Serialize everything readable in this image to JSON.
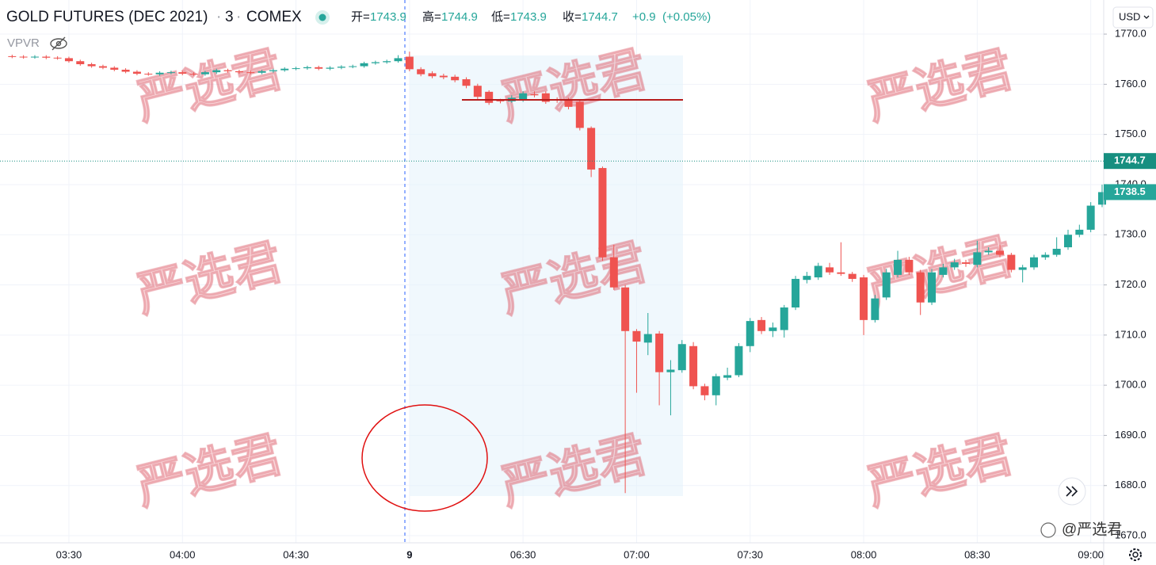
{
  "chart_data": {
    "type": "candlestick",
    "title": "GOLD FUTURES (DEC 2021)",
    "separator": "·",
    "interval": "3",
    "exchange": "COMEX",
    "ohlc": [
      {
        "label": "开=",
        "value": 1743.9
      },
      {
        "label": "高=",
        "value": 1744.9
      },
      {
        "label": "低=",
        "value": 1743.9
      },
      {
        "label": "收=",
        "value": 1744.7
      }
    ],
    "change": "+0.9",
    "change_pct": "(+0.05%)",
    "indicator": "VPVR",
    "currency": "USD",
    "watermark": "严选君",
    "watermark_footer": "@严选君",
    "up_color": "#26a69a",
    "down_color": "#ef5350",
    "categories": [
      null,
      null,
      null,
      null,
      null,
      "03:30",
      null,
      null,
      null,
      null,
      null,
      null,
      null,
      null,
      null,
      "04:00",
      null,
      null,
      null,
      null,
      null,
      null,
      null,
      null,
      null,
      "04:30",
      null,
      null,
      null,
      null,
      null,
      null,
      null,
      null,
      null,
      "9",
      null,
      null,
      null,
      null,
      null,
      null,
      null,
      null,
      null,
      "06:30",
      null,
      null,
      null,
      null,
      null,
      null,
      null,
      null,
      null,
      "07:00",
      null,
      null,
      null,
      null,
      null,
      null,
      null,
      null,
      null,
      "07:30",
      null,
      null,
      null,
      null,
      null,
      null,
      null,
      null,
      null,
      "08:00",
      null,
      null,
      null,
      null,
      null,
      null,
      null,
      null,
      null,
      "08:30",
      null,
      null,
      null,
      null,
      null,
      null,
      null,
      null,
      null,
      "09:00",
      null
    ],
    "open": [
      1765.6,
      1765.5,
      1765.4,
      1765.5,
      1765.3,
      1765.2,
      1764.6,
      1764.0,
      1763.6,
      1763.3,
      1762.9,
      1762.5,
      1762.1,
      1762.0,
      1762.3,
      1762.4,
      1762.1,
      1762.0,
      1762.4,
      1762.8,
      1762.6,
      1762.4,
      1762.3,
      1762.6,
      1762.8,
      1763.1,
      1763.2,
      1763.4,
      1763.1,
      1763.3,
      1763.5,
      1763.6,
      1764.2,
      1764.4,
      1764.6,
      1765.5,
      1763.0,
      1762.2,
      1761.7,
      1761.5,
      1761.0,
      1759.7,
      1758.5,
      1756.8,
      1756.6,
      1756.8,
      1758.0,
      1758.2,
      1757.0,
      1757.0,
      1756.5,
      1751.3,
      1743.3,
      1725.5,
      1719.5,
      1710.8,
      1708.5,
      1710.3,
      1702.6,
      1703.0,
      1707.8,
      1699.8,
      1698.0,
      1701.5,
      1702.0,
      1707.8,
      1713.0,
      1710.8,
      1711.0,
      1715.5,
      1721.0,
      1721.5,
      1723.5,
      1722.5,
      1722.2,
      1721.5,
      1713.0,
      1717.5,
      1722.0,
      1725.0,
      1722.5,
      1716.5,
      1722.0,
      1723.5,
      1724.5,
      1724.0,
      1726.5,
      1726.8,
      1726.0,
      1723.0,
      1723.5,
      1725.5,
      1726.0,
      1727.5,
      1730.0,
      1731.0,
      1736.0
    ],
    "high": [
      1765.9,
      1765.8,
      1765.8,
      1765.8,
      1765.6,
      1765.5,
      1764.9,
      1764.3,
      1763.9,
      1763.6,
      1763.2,
      1762.8,
      1762.4,
      1762.6,
      1762.7,
      1762.7,
      1762.4,
      1762.7,
      1763.1,
      1763.1,
      1762.9,
      1762.7,
      1762.9,
      1763.1,
      1763.4,
      1763.5,
      1763.7,
      1763.7,
      1763.6,
      1763.8,
      1763.9,
      1764.5,
      1764.7,
      1764.9,
      1765.8,
      1766.5,
      1763.4,
      1762.6,
      1762.1,
      1761.9,
      1761.4,
      1760.1,
      1758.8,
      1757.1,
      1757.8,
      1758.6,
      1758.6,
      1758.6,
      1757.4,
      1757.3,
      1756.8,
      1751.6,
      1743.6,
      1728.0,
      1720.0,
      1711.2,
      1714.4,
      1710.8,
      1705.0,
      1709.0,
      1708.6,
      1700.3,
      1702.3,
      1703.5,
      1708.4,
      1713.4,
      1713.6,
      1712.5,
      1716.0,
      1721.8,
      1722.6,
      1724.4,
      1724.4,
      1728.5,
      1722.6,
      1722.0,
      1718.0,
      1723.2,
      1726.8,
      1725.6,
      1723.0,
      1723.2,
      1724.2,
      1725.2,
      1725.0,
      1728.8,
      1727.5,
      1728.0,
      1726.4,
      1724.0,
      1726.0,
      1726.5,
      1729.5,
      1731.0,
      1732.0,
      1736.5,
      1740.0
    ],
    "low": [
      1765.2,
      1765.1,
      1765.1,
      1765.0,
      1764.9,
      1764.3,
      1763.7,
      1763.3,
      1763.0,
      1762.6,
      1762.2,
      1761.8,
      1761.7,
      1761.7,
      1762.0,
      1761.8,
      1761.7,
      1761.7,
      1762.1,
      1762.3,
      1762.1,
      1762.0,
      1762.0,
      1762.3,
      1762.5,
      1762.8,
      1762.9,
      1762.8,
      1762.8,
      1763.0,
      1763.2,
      1763.3,
      1763.9,
      1764.1,
      1764.3,
      1762.6,
      1761.6,
      1761.2,
      1761.0,
      1760.4,
      1759.2,
      1756.9,
      1755.9,
      1756.2,
      1756.3,
      1756.5,
      1757.4,
      1756.1,
      1756.3,
      1755.0,
      1750.8,
      1741.5,
      1724.8,
      1719.0,
      1678.5,
      1698.5,
      1706.0,
      1696.0,
      1694.0,
      1702.5,
      1699.2,
      1697.0,
      1696.0,
      1701.0,
      1701.6,
      1706.6,
      1710.2,
      1709.6,
      1709.5,
      1715.0,
      1720.3,
      1721.0,
      1722.0,
      1721.8,
      1720.6,
      1710.0,
      1712.5,
      1717.0,
      1721.5,
      1722.0,
      1714.0,
      1716.0,
      1721.5,
      1723.0,
      1723.6,
      1723.5,
      1726.0,
      1725.5,
      1722.5,
      1720.5,
      1723.0,
      1725.0,
      1725.6,
      1727.0,
      1729.5,
      1730.5,
      1735.5
    ],
    "close": [
      1765.5,
      1765.4,
      1765.5,
      1765.3,
      1765.2,
      1764.6,
      1764.0,
      1763.6,
      1763.3,
      1762.9,
      1762.5,
      1762.1,
      1762.0,
      1762.3,
      1762.4,
      1762.1,
      1762.0,
      1762.4,
      1762.8,
      1762.6,
      1762.4,
      1762.3,
      1762.6,
      1762.8,
      1763.1,
      1763.2,
      1763.4,
      1763.1,
      1763.3,
      1763.5,
      1763.6,
      1764.2,
      1764.4,
      1764.6,
      1765.2,
      1763.0,
      1762.0,
      1761.6,
      1761.4,
      1760.8,
      1759.7,
      1757.5,
      1756.3,
      1756.6,
      1757.3,
      1758.2,
      1757.8,
      1756.5,
      1756.8,
      1755.5,
      1751.3,
      1743.0,
      1725.5,
      1719.5,
      1710.8,
      1708.7,
      1710.2,
      1702.6,
      1703.1,
      1708.2,
      1699.8,
      1698.0,
      1701.8,
      1702.0,
      1707.8,
      1712.8,
      1710.8,
      1711.5,
      1715.5,
      1721.2,
      1721.8,
      1723.8,
      1722.5,
      1722.2,
      1721.2,
      1713.0,
      1717.3,
      1722.5,
      1725.0,
      1722.5,
      1716.5,
      1722.5,
      1723.5,
      1724.5,
      1724.2,
      1726.5,
      1726.8,
      1726.0,
      1723.0,
      1723.5,
      1725.5,
      1726.0,
      1727.2,
      1730.0,
      1731.0,
      1735.8,
      1738.5
    ],
    "ylim": [
      1668.9,
      1776.8
    ],
    "yticks": [
      {
        "value": 1670,
        "label": "1670.0"
      },
      {
        "value": 1680,
        "label": "1680.0"
      },
      {
        "value": 1690,
        "label": "1690.0"
      },
      {
        "value": 1700,
        "label": "1700.0"
      },
      {
        "value": 1710,
        "label": "1710.0"
      },
      {
        "value": 1720,
        "label": "1720.0"
      },
      {
        "value": 1730,
        "label": "1730.0"
      },
      {
        "value": 1740,
        "label": "1740.0"
      },
      {
        "value": 1750,
        "label": "1750.0"
      },
      {
        "value": 1760,
        "label": "1760.0"
      },
      {
        "value": 1770,
        "label": "1770.0"
      }
    ],
    "price_lines": [
      {
        "value": 1744.7,
        "color": "#178f80",
        "dotted": true
      },
      {
        "value": 1738.5,
        "color": "#26a69a",
        "dotted": false
      }
    ],
    "grid": true
  }
}
